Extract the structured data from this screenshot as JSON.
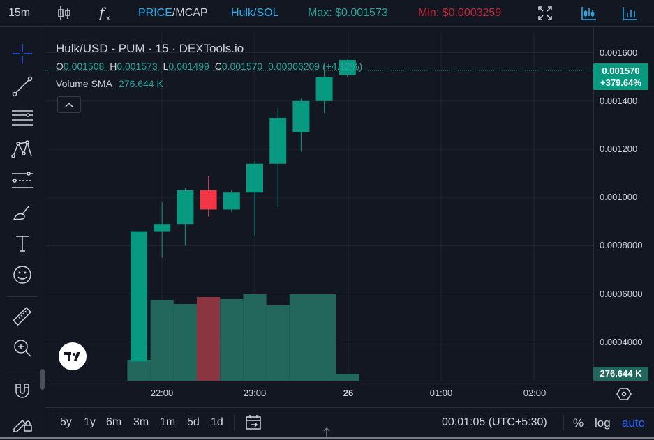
{
  "topbar": {
    "interval": "15m",
    "price_label": "PRICE",
    "slash": "/",
    "mcap_label": "MCAP",
    "pair_label": "Hulk/SOL",
    "max_label": "Max: $0.001573",
    "min_label": "Min: $0.0003259",
    "colors": {
      "accent": "#2ab0f0",
      "max": "#26a69a",
      "min": "#c2273a"
    }
  },
  "legend": {
    "title": "Hulk/USD - PUM · 15 · DEXTools.io",
    "o_key": "O",
    "o_val": "0.001508",
    "h_key": "H",
    "h_val": "0.001573",
    "l_key": "L",
    "l_val": "0.001499",
    "c_key": "C",
    "c_val": "0.001570",
    "change": "0.00006209 (+4.12%)",
    "volume_label": "Volume SMA",
    "volume_val": "276.644 K"
  },
  "price_axis": {
    "ticks": [
      "0.001600",
      "0.001400",
      "0.001200",
      "0.001000",
      "0.0008000",
      "0.0006000",
      "0.0004000"
    ],
    "last_price": "0.001570",
    "last_change": "+379.64%",
    "volume_badge": "276.644 K"
  },
  "time_axis": {
    "labels": [
      "22:00",
      "23:00",
      "26",
      "01:00",
      "02:00"
    ]
  },
  "bottombar": {
    "ranges": [
      "5y",
      "1y",
      "6m",
      "3m",
      "1m",
      "5d",
      "1d"
    ],
    "time": "00:01:05 (UTC+5:30)",
    "percent": "%",
    "log": "log",
    "auto": "auto"
  },
  "chart_data": {
    "type": "candlestick",
    "title": "Hulk/USD - PUM · 15 · DEXTools.io",
    "x": [
      "21:45",
      "22:00",
      "22:15",
      "22:30",
      "22:45",
      "23:00",
      "23:15",
      "23:30",
      "23:45",
      "00:00"
    ],
    "open": [
      0.00032,
      0.00086,
      0.00089,
      0.00103,
      0.00095,
      0.00102,
      0.00114,
      0.00127,
      0.0014,
      0.001508
    ],
    "high": [
      0.00086,
      0.00098,
      0.00104,
      0.00109,
      0.00103,
      0.00115,
      0.00137,
      0.00141,
      0.00155,
      0.001573
    ],
    "low": [
      0.00032,
      0.00075,
      0.0008,
      0.00092,
      0.00094,
      0.00084,
      0.00096,
      0.00119,
      0.00135,
      0.001499
    ],
    "close": [
      0.00086,
      0.00089,
      0.00103,
      0.00095,
      0.00102,
      0.00114,
      0.00133,
      0.0014,
      0.0015,
      0.00157
    ],
    "volume": [
      30,
      116,
      110,
      120,
      117,
      124,
      108,
      124,
      124,
      10
    ],
    "ylim": [
      0.00024,
      0.00168
    ],
    "colors": {
      "up": "#089981",
      "down": "#f23645",
      "vol_up": "#22665c",
      "vol_down": "#8b3540"
    }
  }
}
